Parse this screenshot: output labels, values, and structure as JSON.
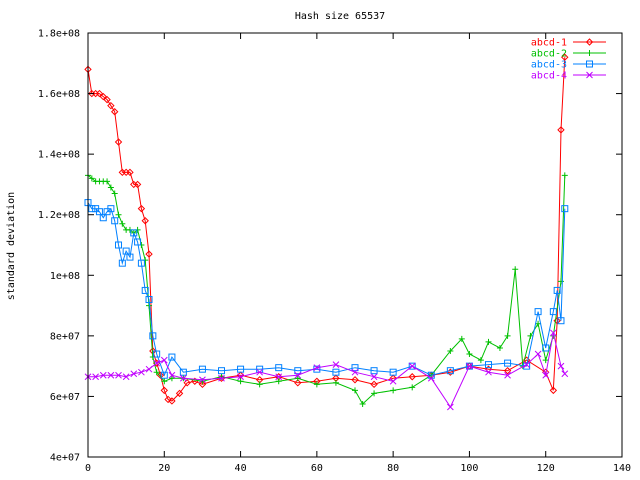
{
  "chart_data": {
    "type": "line",
    "title": "Hash size 65537",
    "xlabel": "",
    "ylabel": "standard deviation",
    "xlim": [
      0,
      140
    ],
    "ylim": [
      40000000,
      180000000
    ],
    "xticks": [
      0,
      20,
      40,
      60,
      80,
      100,
      120,
      140
    ],
    "xtick_labels": [
      "0",
      "20",
      "40",
      "60",
      "80",
      "100",
      "120",
      "140"
    ],
    "yticks": [
      40000000,
      60000000,
      80000000,
      100000000,
      120000000,
      140000000,
      160000000,
      180000000
    ],
    "ytick_labels": [
      "4e+07",
      "6e+07",
      "8e+07",
      "1e+08",
      "1.2e+08",
      "1.4e+08",
      "1.6e+08",
      "1.8e+08"
    ],
    "grid": false,
    "legend_position": "top-right",
    "series": [
      {
        "name": "abcd-1",
        "color": "#ff0000",
        "marker": "diamond",
        "x": [
          0,
          1,
          2,
          3,
          4,
          5,
          6,
          7,
          8,
          9,
          10,
          11,
          12,
          13,
          14,
          15,
          16,
          17,
          18,
          19,
          20,
          21,
          22,
          24,
          26,
          28,
          30,
          35,
          40,
          45,
          50,
          55,
          60,
          65,
          70,
          75,
          80,
          85,
          90,
          95,
          100,
          105,
          110,
          115,
          120,
          122,
          123,
          124,
          125
        ],
        "y": [
          168000000,
          160000000,
          160000000,
          160000000,
          159000000,
          158000000,
          156000000,
          154000000,
          144000000,
          134000000,
          134000000,
          134000000,
          130000000,
          130000000,
          122000000,
          118000000,
          107000000,
          75000000,
          71000000,
          67000000,
          62000000,
          59000000,
          58500000,
          61000000,
          64500000,
          65000000,
          64000000,
          66000000,
          67000000,
          65500000,
          66500000,
          64500000,
          65000000,
          66000000,
          65500000,
          64000000,
          66000000,
          66500000,
          67000000,
          68000000,
          70000000,
          69000000,
          68500000,
          72000000,
          68000000,
          62000000,
          85000000,
          148000000,
          172000000
        ]
      },
      {
        "name": "abcd-2",
        "color": "#00c000",
        "marker": "plus",
        "x": [
          0,
          1,
          2,
          3,
          4,
          5,
          6,
          7,
          8,
          9,
          10,
          11,
          12,
          13,
          14,
          15,
          16,
          17,
          18,
          20,
          22,
          25,
          30,
          35,
          40,
          45,
          50,
          55,
          60,
          65,
          70,
          72,
          75,
          80,
          85,
          90,
          95,
          98,
          100,
          103,
          105,
          108,
          110,
          112,
          114,
          116,
          118,
          120,
          122,
          124,
          125
        ],
        "y": [
          133000000,
          132000000,
          131000000,
          131000000,
          131000000,
          131000000,
          129000000,
          127000000,
          120000000,
          117000000,
          115000000,
          115000000,
          114000000,
          115000000,
          110000000,
          105000000,
          90000000,
          73000000,
          68000000,
          65000000,
          66000000,
          66000000,
          65000000,
          66500000,
          65000000,
          64000000,
          65000000,
          66000000,
          64000000,
          64500000,
          62000000,
          57500000,
          61000000,
          62000000,
          63000000,
          67000000,
          75000000,
          79000000,
          74000000,
          72000000,
          78000000,
          76000000,
          80000000,
          102000000,
          70000000,
          80000000,
          84000000,
          72000000,
          80000000,
          98000000,
          133000000
        ]
      },
      {
        "name": "abcd-3",
        "color": "#0080ff",
        "marker": "square",
        "x": [
          0,
          1,
          2,
          3,
          4,
          5,
          6,
          7,
          8,
          9,
          10,
          11,
          12,
          13,
          14,
          15,
          16,
          17,
          18,
          20,
          22,
          25,
          30,
          35,
          40,
          45,
          50,
          55,
          60,
          65,
          70,
          75,
          80,
          85,
          90,
          95,
          100,
          105,
          110,
          115,
          118,
          120,
          122,
          123,
          124,
          125
        ],
        "y": [
          124000000,
          122000000,
          122000000,
          121000000,
          119000000,
          121000000,
          122000000,
          118000000,
          110000000,
          104000000,
          108000000,
          106000000,
          114000000,
          111000000,
          104000000,
          95000000,
          92000000,
          80000000,
          74000000,
          67000000,
          73000000,
          68000000,
          69000000,
          68500000,
          69000000,
          69000000,
          69500000,
          68500000,
          69000000,
          68000000,
          69500000,
          68500000,
          68000000,
          70000000,
          67000000,
          68500000,
          70000000,
          70500000,
          71000000,
          70000000,
          88000000,
          76000000,
          88000000,
          95000000,
          85000000,
          122000000
        ]
      },
      {
        "name": "abcd-4",
        "color": "#c000ff",
        "marker": "x",
        "x": [
          0,
          2,
          4,
          6,
          8,
          10,
          12,
          14,
          16,
          18,
          20,
          22,
          25,
          30,
          35,
          40,
          45,
          50,
          55,
          60,
          65,
          70,
          75,
          80,
          85,
          90,
          95,
          100,
          105,
          110,
          115,
          118,
          120,
          122,
          124,
          125
        ],
        "y": [
          66500000,
          66500000,
          67000000,
          67000000,
          67000000,
          66500000,
          67500000,
          68000000,
          69000000,
          71000000,
          72000000,
          67000000,
          66000000,
          65500000,
          66000000,
          66500000,
          68000000,
          66500000,
          67000000,
          69500000,
          70500000,
          68000000,
          66500000,
          65000000,
          70000000,
          66000000,
          56500000,
          70000000,
          68000000,
          67000000,
          70500000,
          74000000,
          67000000,
          81000000,
          70000000,
          67500000
        ]
      }
    ]
  }
}
